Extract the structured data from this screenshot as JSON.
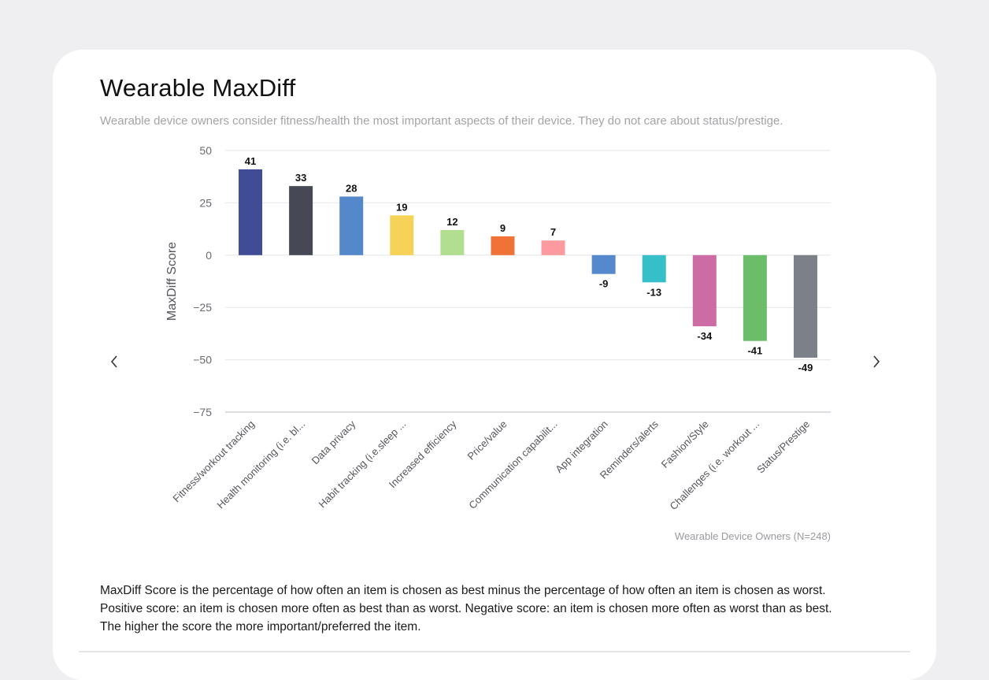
{
  "card": {
    "title": "Wearable MaxDiff",
    "subtitle": "Wearable device owners consider fitness/health the most important aspects of their device. They do not care about status/prestige.",
    "footnote": [
      "MaxDiff Score is the percentage of how often an item is chosen as best minus the percentage of how often an item is chosen as worst.",
      "Positive score: an item is chosen more often as best than as worst. Negative score: an item is chosen more often as worst than as best.",
      "The higher the score the more important/preferred the item."
    ]
  },
  "nav": {
    "prev_icon": "chevron-left-icon",
    "next_icon": "chevron-right-icon"
  },
  "chart_data": {
    "type": "bar",
    "title": "Wearable MaxDiff",
    "ylabel": "MaxDiff Score",
    "xlabel": "",
    "ylim": [
      -75,
      50
    ],
    "yticks": [
      50,
      25,
      0,
      -25,
      -50,
      -75
    ],
    "ytick_labels": [
      "50",
      "25",
      "0",
      "−25",
      "−50",
      "−75"
    ],
    "grid": true,
    "source_note": "Wearable Device Owners (N=248)",
    "categories": [
      "Fitness/workout tracking",
      "Health monitoring (i.e. bl...",
      "Data privacy",
      "Habit tracking (i.e.sleep ...",
      "Increased efficiency",
      "Price/value",
      "Communication capabilit...",
      "App integration",
      "Reminders/alerts",
      "Fashion/Style",
      "Challenges (i.e. workout ...",
      "Status/Prestige"
    ],
    "values": [
      41,
      33,
      28,
      19,
      12,
      9,
      7,
      -9,
      -13,
      -34,
      -41,
      -49
    ],
    "colors": [
      "#404c95",
      "#464856",
      "#5388cb",
      "#f6d256",
      "#b1df8f",
      "#ef7237",
      "#fd9a9f",
      "#5588cc",
      "#36bec9",
      "#cd6ba4",
      "#6bbd6a",
      "#7b8089"
    ]
  }
}
